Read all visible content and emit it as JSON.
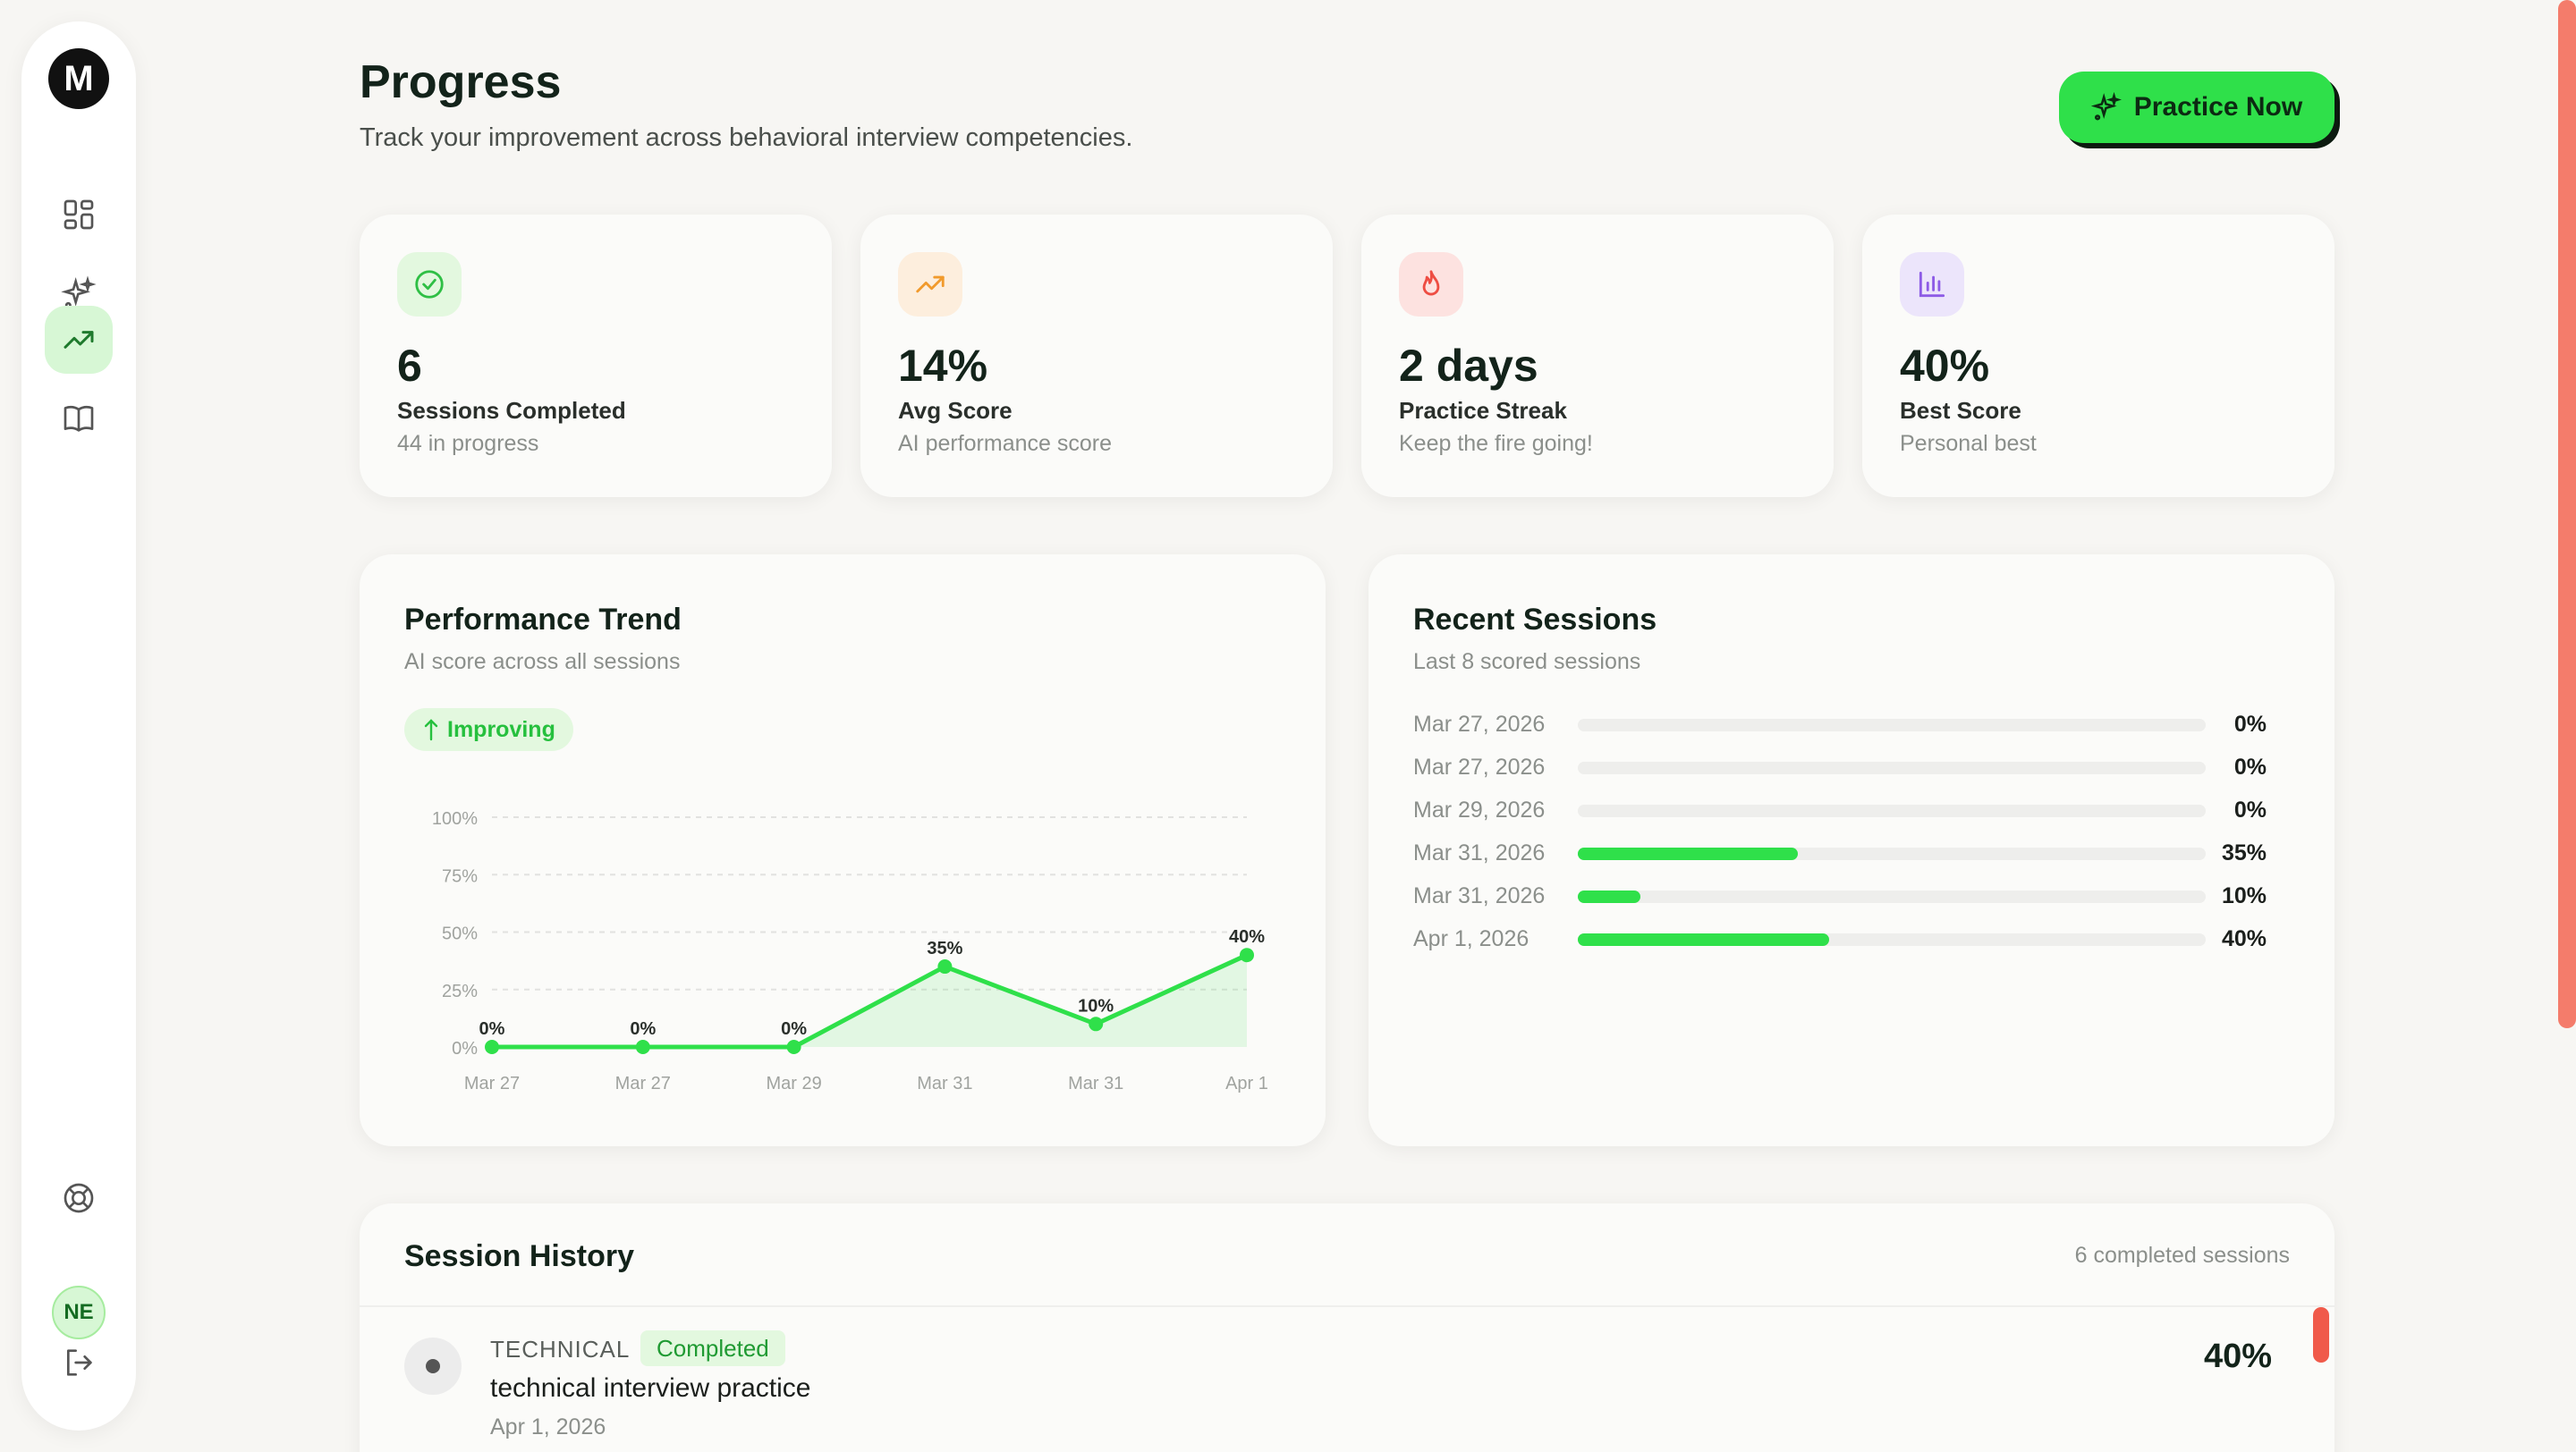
{
  "header": {
    "title": "Progress",
    "subtitle": "Track your improvement across behavioral interview competencies.",
    "practice_label": "Practice Now"
  },
  "sidebar": {
    "logo_letter": "M",
    "items": [
      {
        "name": "dashboard",
        "icon": "grid-icon"
      },
      {
        "name": "practice",
        "icon": "sparkles-icon"
      },
      {
        "name": "progress",
        "icon": "trending-up-icon",
        "active": true
      },
      {
        "name": "library",
        "icon": "book-icon"
      }
    ],
    "help_icon": "lifebuoy-icon",
    "avatar_initials": "NE",
    "logout_icon": "logout-icon"
  },
  "stats": [
    {
      "value": "6",
      "label": "Sessions Completed",
      "note": "44 in progress",
      "icon": "check-circle-icon",
      "color": "#e3f8df",
      "stroke": "#2fbf45"
    },
    {
      "value": "14%",
      "label": "Avg Score",
      "note": "AI performance score",
      "icon": "trending-up-icon",
      "color": "#fdeedd",
      "stroke": "#f19a2c"
    },
    {
      "value": "2 days",
      "label": "Practice Streak",
      "note": "Keep the fire going!",
      "icon": "flame-icon",
      "color": "#fde2e0",
      "stroke": "#ee4d43"
    },
    {
      "value": "40%",
      "label": "Best Score",
      "note": "Personal best",
      "icon": "bar-chart-icon",
      "color": "#ece5fb",
      "stroke": "#8d5be6"
    }
  ],
  "trend": {
    "title": "Performance Trend",
    "subtitle": "AI score across all sessions",
    "badge": "Improving"
  },
  "chart_data": {
    "type": "area",
    "categories": [
      "Mar 27",
      "Mar 27",
      "Mar 29",
      "Mar 31",
      "Mar 31",
      "Apr 1"
    ],
    "values": [
      0,
      0,
      0,
      35,
      10,
      40
    ],
    "data_labels": [
      "0%",
      "0%",
      "0%",
      "35%",
      "10%",
      "40%"
    ],
    "y_ticks": [
      "100%",
      "75%",
      "50%",
      "25%",
      "0%"
    ],
    "ylim": [
      0,
      100
    ],
    "grid": true,
    "color": "#2fe04a"
  },
  "recent": {
    "title": "Recent Sessions",
    "subtitle": "Last 8 scored sessions",
    "rows": [
      {
        "date": "Mar 27, 2026",
        "score": 0,
        "label": "0%"
      },
      {
        "date": "Mar 27, 2026",
        "score": 0,
        "label": "0%"
      },
      {
        "date": "Mar 29, 2026",
        "score": 0,
        "label": "0%"
      },
      {
        "date": "Mar 31, 2026",
        "score": 35,
        "label": "35%"
      },
      {
        "date": "Mar 31, 2026",
        "score": 10,
        "label": "10%"
      },
      {
        "date": "Apr 1, 2026",
        "score": 40,
        "label": "40%"
      }
    ]
  },
  "history": {
    "title": "Session History",
    "count_label": "6 completed sessions",
    "items": [
      {
        "category": "TECHNICAL",
        "status": "Completed",
        "name": "technical interview practice",
        "date": "Apr 1, 2026",
        "score": "40%"
      }
    ]
  }
}
